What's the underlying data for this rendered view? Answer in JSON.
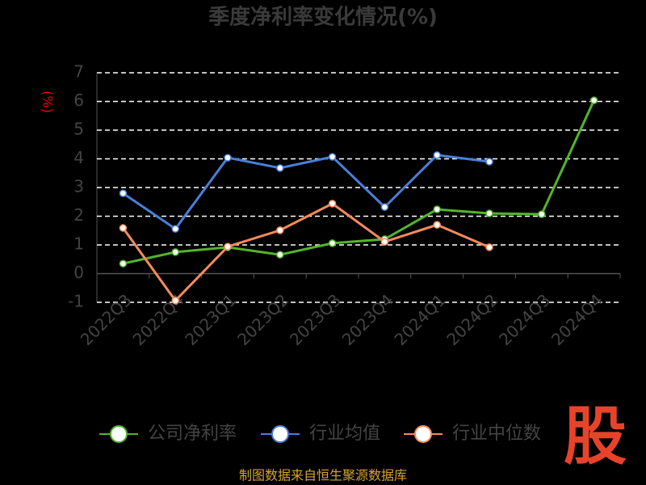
{
  "chart_data": {
    "type": "line",
    "title": "季度净利率变化情况(%)",
    "y_label": "(%)",
    "categories": [
      "2022Q3",
      "2022Q4",
      "2023Q1",
      "2023Q2",
      "2023Q3",
      "2023Q4",
      "2024Q1",
      "2024Q2",
      "2024Q3",
      "2024Q4"
    ],
    "series": [
      {
        "name": "公司净利率",
        "color": "#52b52a",
        "values": [
          0.35,
          0.75,
          0.92,
          0.66,
          1.06,
          1.2,
          2.24,
          2.1,
          2.07,
          6.04
        ]
      },
      {
        "name": "行业均值",
        "color": "#4a7fd8",
        "values": [
          2.8,
          1.56,
          4.04,
          3.68,
          4.07,
          2.32,
          4.13,
          3.9,
          null,
          null
        ]
      },
      {
        "name": "行业中位数",
        "color": "#f58a5c",
        "values": [
          1.59,
          -0.94,
          0.94,
          1.51,
          2.44,
          1.11,
          1.7,
          0.92,
          null,
          null
        ]
      }
    ],
    "ylim": [
      -1,
      7
    ],
    "yticks": [
      -1,
      0,
      1,
      2,
      3,
      4,
      5,
      6,
      7
    ],
    "grid": true,
    "source": "制图数据来自恒生聚源数据库",
    "logo": "股"
  }
}
